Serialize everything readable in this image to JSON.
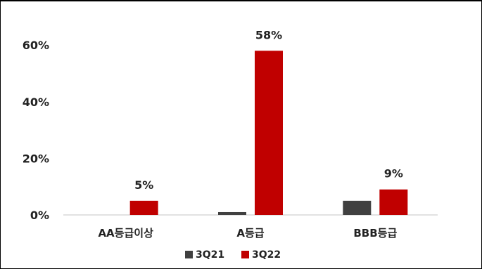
{
  "chart_data": {
    "type": "bar",
    "categories": [
      "AA등급이상",
      "A등급",
      "BBB등급"
    ],
    "series": [
      {
        "name": "3Q21",
        "values": [
          0,
          1,
          5
        ],
        "color": "#404040"
      },
      {
        "name": "3Q22",
        "values": [
          5,
          58,
          9
        ],
        "color": "#C00000"
      }
    ],
    "data_labels": [
      {
        "series": 1,
        "category": 0,
        "text": "5%"
      },
      {
        "series": 1,
        "category": 1,
        "text": "58%"
      },
      {
        "series": 1,
        "category": 2,
        "text": "9%"
      }
    ],
    "y_ticks": [
      {
        "value": 0,
        "label": "0%"
      },
      {
        "value": 20,
        "label": "20%"
      },
      {
        "value": 40,
        "label": "40%"
      },
      {
        "value": 60,
        "label": "60%"
      }
    ],
    "ylim": [
      0,
      70
    ],
    "grid": false,
    "legend_position": "bottom"
  }
}
